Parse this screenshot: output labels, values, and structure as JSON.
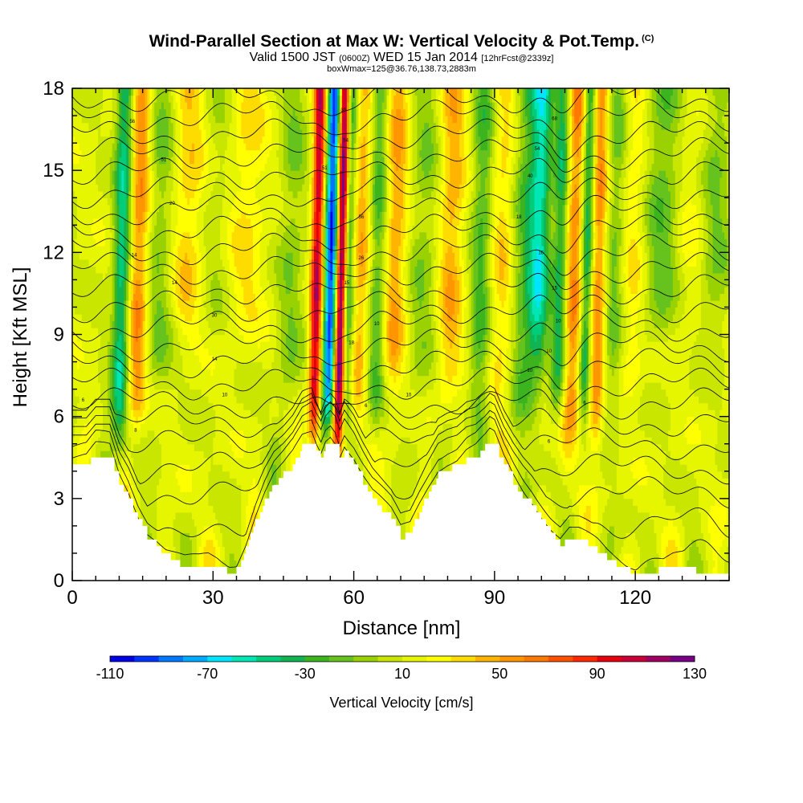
{
  "title": {
    "main": "Wind-Parallel Section at Max W: Vertical Velocity & Pot.Temp.",
    "copyright": "(C)",
    "valid_prefix": "Valid 1500 JST",
    "utc": "(0600Z)",
    "valid_date": "WED 15 Jan 2014",
    "forecast": "[12hrFcst@2339z]",
    "box_info": "boxWmax=125@36.76,138.73,2883m"
  },
  "chart_data": {
    "type": "heatmap",
    "xlabel": "Distance [nm]",
    "ylabel": "Height [Kft MSL]",
    "xlim": [
      0,
      140
    ],
    "ylim": [
      0,
      18
    ],
    "xticks": [
      0,
      30,
      60,
      90,
      120
    ],
    "yticks": [
      0,
      3,
      6,
      9,
      12,
      15,
      18
    ],
    "colorbar": {
      "label": "Vertical Velocity [cm/s]",
      "min": -110,
      "max": 130,
      "step": 10,
      "tick_values": [
        -110,
        -70,
        -30,
        10,
        50,
        90,
        130
      ],
      "colors": [
        "#0000e6",
        "#0033ff",
        "#0077ff",
        "#00aaff",
        "#00e5ff",
        "#00e6b4",
        "#00cc7a",
        "#11b450",
        "#3cb41e",
        "#66c31e",
        "#99d200",
        "#c8e600",
        "#e6f500",
        "#ffff00",
        "#ffdc00",
        "#ffb400",
        "#ff9600",
        "#ff7800",
        "#ff5000",
        "#ff2800",
        "#e6000f",
        "#c80037",
        "#a0005f",
        "#780087"
      ]
    },
    "terrain_kft": [
      [
        0,
        4.2
      ],
      [
        3,
        4.2
      ],
      [
        5,
        4.6
      ],
      [
        8,
        4.6
      ],
      [
        10,
        3.6
      ],
      [
        12,
        3
      ],
      [
        14,
        2.2
      ],
      [
        16,
        1.6
      ],
      [
        18,
        1.3
      ],
      [
        20,
        0.9
      ],
      [
        22,
        0.7
      ],
      [
        24,
        0.5
      ],
      [
        27,
        0.5
      ],
      [
        29,
        0.6
      ],
      [
        31,
        0.5
      ],
      [
        33,
        0.3
      ],
      [
        35,
        0.4
      ],
      [
        37,
        1.2
      ],
      [
        39,
        2.2
      ],
      [
        41,
        3.0
      ],
      [
        43,
        3.6
      ],
      [
        45,
        3.9
      ],
      [
        47,
        4.3
      ],
      [
        49,
        4.9
      ],
      [
        51,
        5.1
      ],
      [
        52,
        4.7
      ],
      [
        53,
        4.4
      ],
      [
        54,
        4.9
      ],
      [
        55,
        5.1
      ],
      [
        56,
        4.9
      ],
      [
        57,
        4.4
      ],
      [
        58,
        4.8
      ],
      [
        60,
        4.3
      ],
      [
        62,
        3.6
      ],
      [
        64,
        3.0
      ],
      [
        66,
        2.6
      ],
      [
        68,
        2.2
      ],
      [
        70,
        1.6
      ],
      [
        72,
        1.8
      ],
      [
        74,
        2.6
      ],
      [
        76,
        3.3
      ],
      [
        78,
        3.9
      ],
      [
        80,
        4.1
      ],
      [
        82,
        4.2
      ],
      [
        84,
        4.5
      ],
      [
        86,
        4.6
      ],
      [
        88,
        4.9
      ],
      [
        89,
        5.1
      ],
      [
        90,
        5.0
      ],
      [
        92,
        4.2
      ],
      [
        94,
        3.6
      ],
      [
        96,
        3.1
      ],
      [
        98,
        2.7
      ],
      [
        100,
        2.2
      ],
      [
        102,
        1.7
      ],
      [
        104,
        1.3
      ],
      [
        106,
        1.6
      ],
      [
        108,
        1.5
      ],
      [
        110,
        1.3
      ],
      [
        112,
        1.1
      ],
      [
        114,
        0.8
      ],
      [
        116,
        0.6
      ],
      [
        118,
        0.4
      ],
      [
        120,
        0.3
      ],
      [
        124,
        0.3
      ],
      [
        126,
        0.5
      ],
      [
        128,
        0.6
      ],
      [
        131,
        0.6
      ],
      [
        133,
        0.3
      ],
      [
        137,
        0.3
      ],
      [
        139,
        0.3
      ],
      [
        140,
        0.3
      ]
    ],
    "w_features": [
      {
        "x": 10,
        "w": -60,
        "width": 1.3,
        "z_bottom": 5
      },
      {
        "x": 13.5,
        "w": 50,
        "width": 1.6,
        "z_bottom": 6
      },
      {
        "x": 18,
        "w": -25,
        "width": 2.5,
        "z_bottom": 7
      },
      {
        "x": 24,
        "w": 30,
        "width": 3,
        "z_bottom": 9
      },
      {
        "x": 29,
        "w": -15,
        "width": 3,
        "z_bottom": 9
      },
      {
        "x": 36,
        "w": 20,
        "width": 3,
        "z_bottom": 9
      },
      {
        "x": 46,
        "w": -20,
        "width": 2,
        "z_bottom": 6
      },
      {
        "x": 51.5,
        "w": 95,
        "width": 0.9,
        "z_bottom": 5
      },
      {
        "x": 54.5,
        "w": -110,
        "width": 1.0,
        "z_bottom": 6
      },
      {
        "x": 56.7,
        "w": 125,
        "width": 0.8,
        "z_bottom": 5
      },
      {
        "x": 58.2,
        "w": -45,
        "width": 0.9,
        "z_bottom": 6
      },
      {
        "x": 61,
        "w": 35,
        "width": 1.5,
        "z_bottom": 6
      },
      {
        "x": 64.5,
        "w": -40,
        "width": 1.5,
        "z_bottom": 6
      },
      {
        "x": 68,
        "w": 40,
        "width": 2,
        "z_bottom": 7
      },
      {
        "x": 74,
        "w": -20,
        "width": 2.5,
        "z_bottom": 7
      },
      {
        "x": 80,
        "w": 35,
        "width": 2,
        "z_bottom": 7
      },
      {
        "x": 86.5,
        "w": -35,
        "width": 1.6,
        "z_bottom": 6
      },
      {
        "x": 91,
        "w": 25,
        "width": 2,
        "z_bottom": 6
      },
      {
        "x": 96,
        "w": -35,
        "width": 2.2,
        "z_bottom": 6
      },
      {
        "x": 99,
        "w": -55,
        "width": 1.5,
        "z_bottom": 8
      },
      {
        "x": 103.5,
        "w": -60,
        "width": 1.2,
        "z_bottom": 6
      },
      {
        "x": 106,
        "w": 50,
        "width": 1.8,
        "z_bottom": 5
      },
      {
        "x": 109,
        "w": -60,
        "width": 0.9,
        "z_bottom": 6
      },
      {
        "x": 111.5,
        "w": 45,
        "width": 1.2,
        "z_bottom": 5
      },
      {
        "x": 115,
        "w": -25,
        "width": 1.5,
        "z_bottom": 6
      },
      {
        "x": 119,
        "w": 20,
        "width": 2,
        "z_bottom": 7
      },
      {
        "x": 125,
        "w": -30,
        "width": 3,
        "z_bottom": 9
      },
      {
        "x": 131,
        "w": 15,
        "width": 3,
        "z_bottom": 9
      },
      {
        "x": 136,
        "w": -25,
        "width": 2.5,
        "z_bottom": 9
      }
    ],
    "theta_contours": {
      "base_kft": [
        0.8,
        2.0,
        3.2,
        4.1,
        5.0,
        5.8,
        6.5,
        7.2,
        7.9,
        8.6,
        9.3,
        10.0,
        10.7,
        11.4,
        12.1,
        12.8,
        13.5,
        14.2,
        14.9,
        15.6,
        16.3,
        17.0,
        17.7
      ]
    },
    "contour_labels": [
      {
        "x": 2.3,
        "y": 6.6,
        "text": "6"
      },
      {
        "x": 13.5,
        "y": 5.5,
        "text": "8"
      },
      {
        "x": 13.2,
        "y": 11.9,
        "text": "14"
      },
      {
        "x": 12.8,
        "y": 16.8,
        "text": "56"
      },
      {
        "x": 19.5,
        "y": 15.4,
        "text": "51"
      },
      {
        "x": 21.3,
        "y": 13.8,
        "text": "20"
      },
      {
        "x": 21.8,
        "y": 10.9,
        "text": "14"
      },
      {
        "x": 30.3,
        "y": 9.7,
        "text": "30"
      },
      {
        "x": 30.3,
        "y": 8.1,
        "text": "14"
      },
      {
        "x": 32.5,
        "y": 6.8,
        "text": "10"
      },
      {
        "x": 57.8,
        "y": 17.2,
        "text": "30"
      },
      {
        "x": 58.3,
        "y": 16.1,
        "text": "54"
      },
      {
        "x": 53.8,
        "y": 15.1,
        "text": "51"
      },
      {
        "x": 61.6,
        "y": 13.3,
        "text": "56"
      },
      {
        "x": 61.6,
        "y": 11.8,
        "text": "26"
      },
      {
        "x": 58.5,
        "y": 10.9,
        "text": "15"
      },
      {
        "x": 59.5,
        "y": 8.7,
        "text": "18"
      },
      {
        "x": 64.9,
        "y": 9.4,
        "text": "10"
      },
      {
        "x": 62.6,
        "y": 6.4,
        "text": "6"
      },
      {
        "x": 71.7,
        "y": 6.8,
        "text": "10"
      },
      {
        "x": 102.8,
        "y": 16.9,
        "text": "68"
      },
      {
        "x": 99.1,
        "y": 15.8,
        "text": "54"
      },
      {
        "x": 97.6,
        "y": 14.8,
        "text": "40"
      },
      {
        "x": 95.2,
        "y": 13.3,
        "text": "18"
      },
      {
        "x": 99.9,
        "y": 12.0,
        "text": "16"
      },
      {
        "x": 102.8,
        "y": 10.7,
        "text": "15"
      },
      {
        "x": 103.6,
        "y": 9.5,
        "text": "10"
      },
      {
        "x": 101.6,
        "y": 8.4,
        "text": "10"
      },
      {
        "x": 97.5,
        "y": 7.7,
        "text": "10"
      },
      {
        "x": 109.2,
        "y": 6.5,
        "text": "6"
      },
      {
        "x": 101.6,
        "y": 5.1,
        "text": "6"
      }
    ]
  }
}
